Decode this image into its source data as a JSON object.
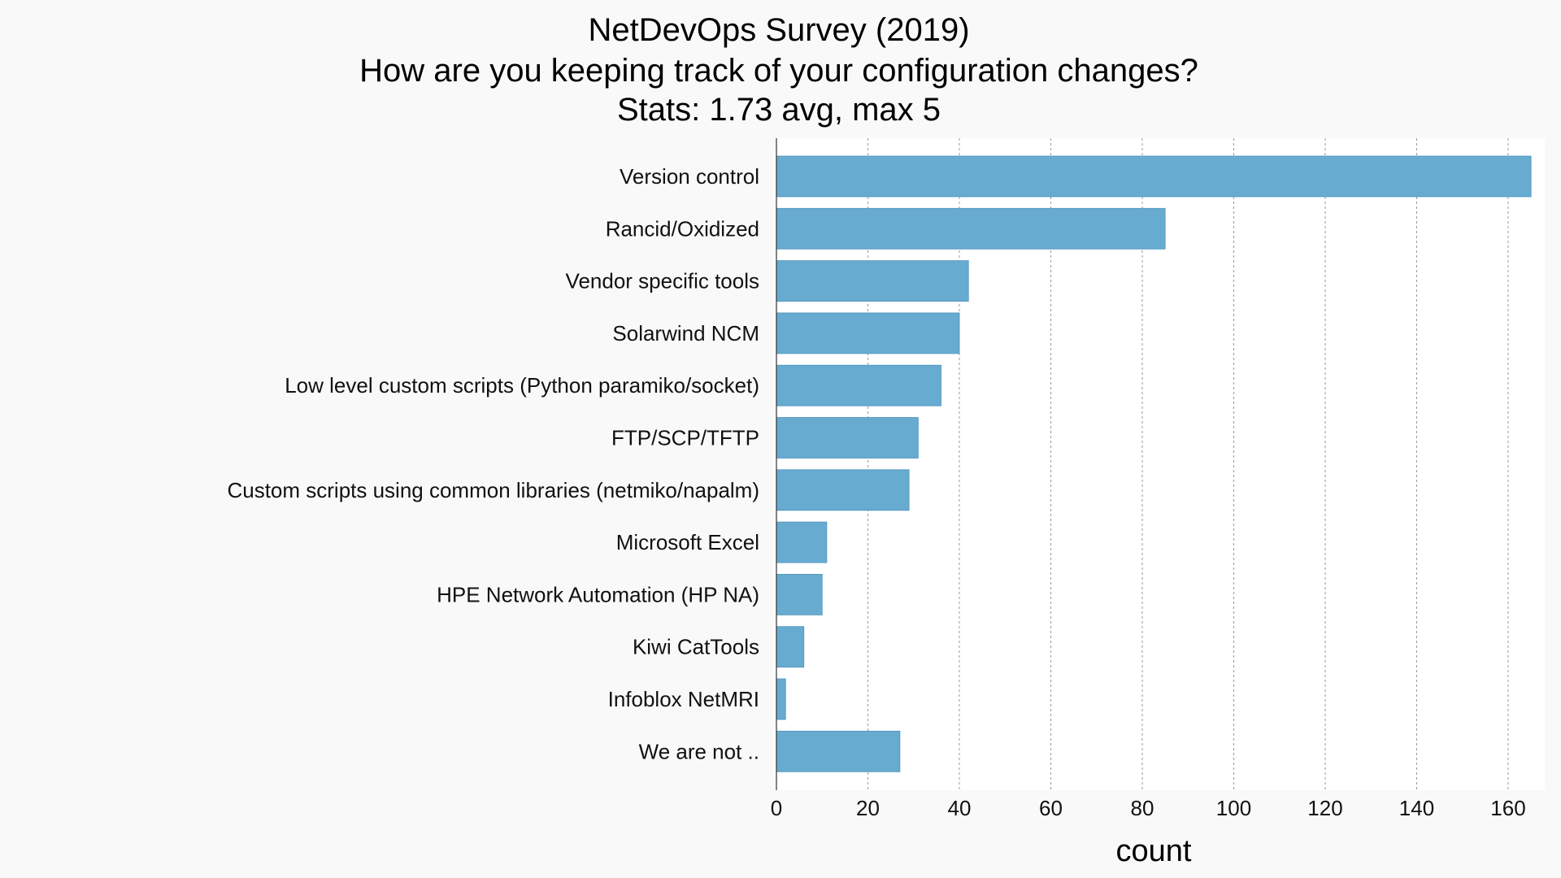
{
  "chart_data": {
    "type": "bar",
    "orientation": "horizontal",
    "title_lines": [
      "NetDevOps Survey (2019)",
      "How are you keeping track of your configuration changes?",
      "Stats: 1.73 avg, max 5"
    ],
    "categories": [
      "Version control",
      "Rancid/Oxidized",
      "Vendor specific tools",
      "Solarwind NCM",
      "Low level custom scripts (Python paramiko/socket)",
      "FTP/SCP/TFTP",
      "Custom scripts using common libraries (netmiko/napalm)",
      "Microsoft Excel",
      "HPE Network Automation (HP NA)",
      "Kiwi CatTools",
      "Infoblox NetMRI",
      "We are not .."
    ],
    "values": [
      165,
      85,
      42,
      40,
      36,
      31,
      29,
      11,
      10,
      6,
      2,
      27
    ],
    "xlabel": "count",
    "ylabel": "",
    "xlim": [
      0,
      168
    ],
    "xticks": [
      0,
      20,
      40,
      60,
      80,
      100,
      120,
      140,
      160
    ],
    "grid": true,
    "bar_color": "#67abd1",
    "bar_edge_color": "#4f93bb",
    "grid_color": "#999999"
  }
}
